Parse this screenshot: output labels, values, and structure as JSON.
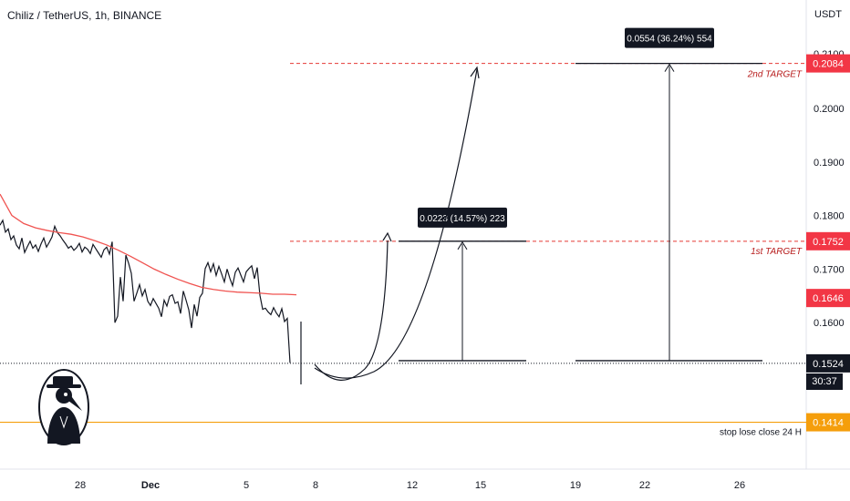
{
  "header": {
    "title": "Chiliz / TetherUS, 1h, BINANCE",
    "currency": "USDT"
  },
  "chart_data": {
    "type": "line",
    "y_ticks": [
      "0.2000",
      "0.1900",
      "0.1800",
      "0.1700",
      "0.1600"
    ],
    "y_partial_tick": "0.2100",
    "x_ticks": [
      "28",
      "Dec",
      "5",
      "8",
      "12",
      "15",
      "19",
      "22",
      "26"
    ],
    "price_series": [
      0.1782,
      0.1791,
      0.1769,
      0.1775,
      0.1755,
      0.1762,
      0.1745,
      0.1738,
      0.1758,
      0.1731,
      0.1742,
      0.1752,
      0.1739,
      0.1745,
      0.1733,
      0.1747,
      0.1758,
      0.1741,
      0.175,
      0.176,
      0.178,
      0.1768,
      0.1762,
      0.1754,
      0.1747,
      0.1739,
      0.1743,
      0.1735,
      0.174,
      0.1748,
      0.1732,
      0.1741,
      0.1737,
      0.1729,
      0.1746,
      0.1738,
      0.173,
      0.1722,
      0.1736,
      0.1741,
      0.1728,
      0.1751,
      0.16,
      0.1612,
      0.1685,
      0.164,
      0.1726,
      0.1711,
      0.1692,
      0.164,
      0.1655,
      0.1671,
      0.165,
      0.1662,
      0.164,
      0.1632,
      0.1645,
      0.1636,
      0.1627,
      0.1611,
      0.1642,
      0.1631,
      0.1649,
      0.1652,
      0.1636,
      0.1639,
      0.1617,
      0.1659,
      0.1642,
      0.1624,
      0.159,
      0.1634,
      0.1612,
      0.1647,
      0.1655,
      0.1701,
      0.1712,
      0.1695,
      0.171,
      0.1688,
      0.1705,
      0.1691,
      0.1676,
      0.17,
      0.1683,
      0.1669,
      0.1694,
      0.1702,
      0.1689,
      0.1676,
      0.1695,
      0.1701,
      0.1706,
      0.1682,
      0.1703,
      0.1651,
      0.1625,
      0.1627,
      0.162,
      0.1615,
      0.1628,
      0.1618,
      0.1611,
      0.1626,
      0.1602,
      0.1608,
      0.1525
    ],
    "ma_series": [
      0.184,
      0.18,
      0.1785,
      0.1777,
      0.1772,
      0.1768,
      0.1765,
      0.176,
      0.1753,
      0.1745,
      0.1735,
      0.1724,
      0.1712,
      0.17,
      0.169,
      0.1681,
      0.1673,
      0.1666,
      0.1662,
      0.1659,
      0.1657,
      0.1656,
      0.1655,
      0.1653,
      0.1653,
      0.1652
    ],
    "current_price": 0.1524,
    "ma_value": 0.1646,
    "target1": 0.1752,
    "target2": 0.2084,
    "stop_loss": 0.1414,
    "entry": 0.1529,
    "measure1": "0.0223 (14.57%) 223",
    "measure2": "0.0554 (36.24%) 554",
    "labels": {
      "target1": "1st TARGET",
      "target2": "2nd TARGET",
      "stop_loss": "stop lose close 24 H"
    },
    "price_tags": {
      "target2": "0.2084",
      "target1": "0.1752",
      "ma": "0.1646",
      "current": "0.1524",
      "stop": "0.1414"
    },
    "colors": {
      "candle": "#131722",
      "ma": "#f05350",
      "target_line": "#e53935",
      "stop": "#f59e0b",
      "tag_red": "#f23645",
      "tag_dark": "#131722"
    }
  },
  "countdown": "30:37"
}
